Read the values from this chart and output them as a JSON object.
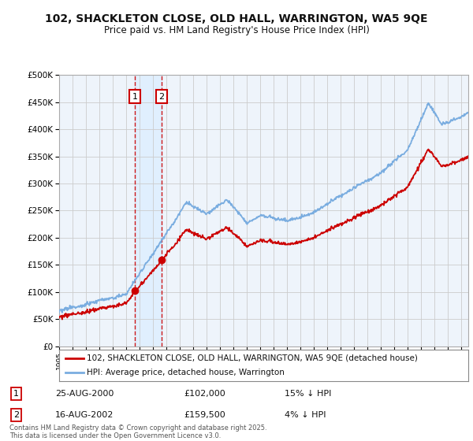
{
  "title": "102, SHACKLETON CLOSE, OLD HALL, WARRINGTON, WA5 9QE",
  "subtitle": "Price paid vs. HM Land Registry's House Price Index (HPI)",
  "legend_line1": "102, SHACKLETON CLOSE, OLD HALL, WARRINGTON, WA5 9QE (detached house)",
  "legend_line2": "HPI: Average price, detached house, Warrington",
  "price_color": "#cc0000",
  "hpi_color": "#7aade0",
  "sale1_date": "25-AUG-2000",
  "sale1_price": 102000,
  "sale1_label": "15% ↓ HPI",
  "sale2_date": "16-AUG-2002",
  "sale2_price": 159500,
  "sale2_label": "4% ↓ HPI",
  "sale1_x": 2000.65,
  "sale2_x": 2002.62,
  "footnote": "Contains HM Land Registry data © Crown copyright and database right 2025.\nThis data is licensed under the Open Government Licence v3.0.",
  "ylim": [
    0,
    500000
  ],
  "xlim_start": 1995,
  "xlim_end": 2025.5,
  "background_color": "#ffffff",
  "grid_color": "#cccccc",
  "shade_color": "#ddeeff"
}
